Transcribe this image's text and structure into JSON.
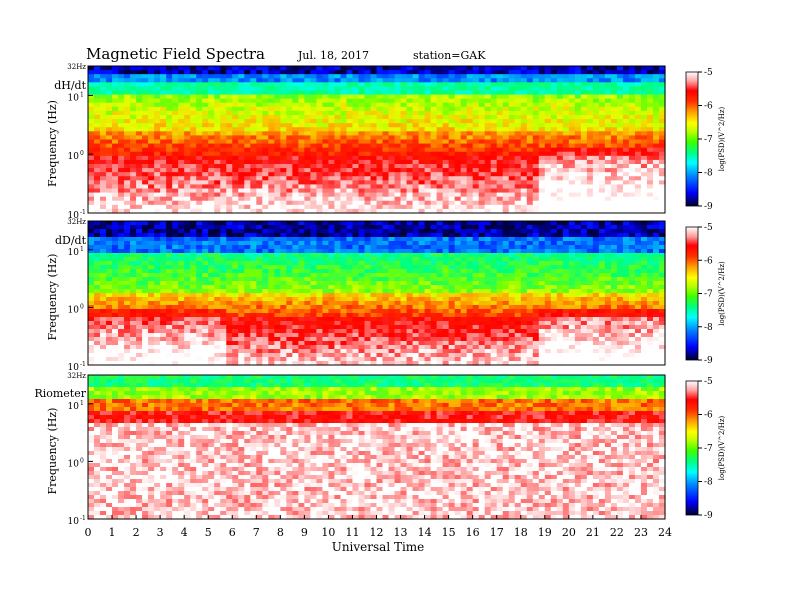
{
  "header": {
    "title": "Magnetic  Field  Spectra",
    "date": "Jul.  18,  2017",
    "station": "station=GAK"
  },
  "colorbar": {
    "label": "log(PSD)(V^2/Hz)",
    "ticks": [
      "-5",
      "-6",
      "-7",
      "-8",
      "-9"
    ],
    "range": [
      -9,
      -5
    ],
    "colors": [
      "#000040",
      "#0000ff",
      "#0090ff",
      "#00ffff",
      "#00ff60",
      "#80ff00",
      "#ffff00",
      "#ffa000",
      "#ff3000",
      "#ff0000",
      "#ffffff"
    ]
  },
  "x_ticks": [
    "0",
    "1",
    "2",
    "3",
    "4",
    "5",
    "6",
    "7",
    "8",
    "9",
    "10",
    "11",
    "12",
    "13",
    "14",
    "15",
    "16",
    "17",
    "18",
    "19",
    "20",
    "21",
    "22",
    "23",
    "24"
  ],
  "xlabel": "Universal  Time",
  "chart_data": [
    {
      "type": "heatmap",
      "label": "dH/dt",
      "xlabel": "Universal  Time",
      "ylabel": "Frequency  (Hz)",
      "x_range": [
        0,
        24
      ],
      "y_scale": "log",
      "y_ticks": [
        "32Hz",
        "10",
        "10",
        "10"
      ],
      "y_tick_exponents": [
        "",
        "1",
        "0",
        "-1"
      ],
      "colorbar_ticks": [
        "-5",
        "-6",
        "-7",
        "-8",
        "-9"
      ],
      "legend": "right"
    },
    {
      "type": "heatmap",
      "label": "dD/dt",
      "xlabel": "Universal  Time",
      "ylabel": "Frequency  (Hz)",
      "x_range": [
        0,
        24
      ],
      "y_scale": "log",
      "y_ticks": [
        "32Hz",
        "10",
        "10",
        "10"
      ],
      "y_tick_exponents": [
        "",
        "1",
        "0",
        "-1"
      ],
      "colorbar_ticks": [
        "-5",
        "-6",
        "-7",
        "-8",
        "-9"
      ],
      "legend": "right"
    },
    {
      "type": "heatmap",
      "label": "Riometer",
      "xlabel": "Universal  Time",
      "ylabel": "Frequency  (Hz)",
      "x_range": [
        0,
        24
      ],
      "y_scale": "log",
      "y_ticks": [
        "32Hz",
        "10",
        "10",
        "10"
      ],
      "y_tick_exponents": [
        "",
        "1",
        "0",
        "-1"
      ],
      "colorbar_ticks": [
        "-5",
        "-6",
        "-7",
        "-8",
        "-9"
      ],
      "legend": "right"
    }
  ]
}
